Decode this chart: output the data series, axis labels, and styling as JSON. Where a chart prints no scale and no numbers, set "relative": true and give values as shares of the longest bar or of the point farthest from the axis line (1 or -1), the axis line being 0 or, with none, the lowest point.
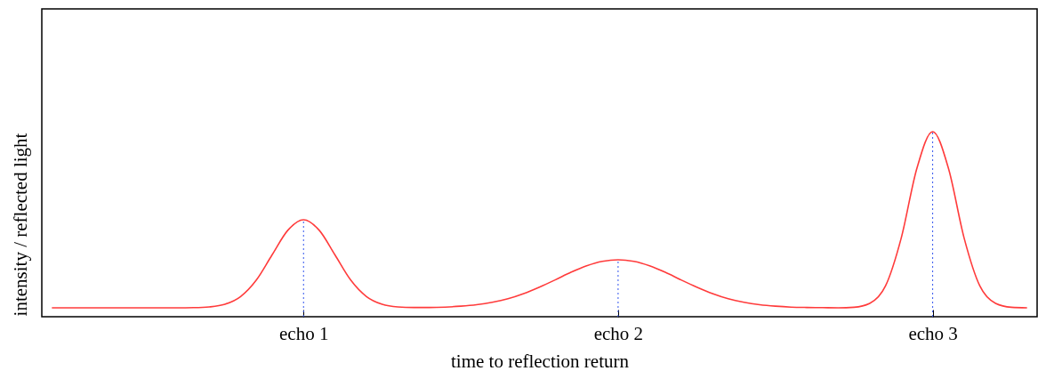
{
  "chart_data": {
    "type": "line",
    "relative": true,
    "xlabel": "time to reflection return",
    "ylabel": "intensity / reflected light",
    "categories": [
      null,
      null,
      null,
      null,
      null,
      null,
      null,
      null,
      null,
      null,
      null,
      null,
      null,
      null,
      null,
      null,
      "echo 1",
      null,
      null,
      null,
      null,
      null,
      null,
      null,
      null,
      null,
      null,
      null,
      null,
      null,
      null,
      null,
      null,
      null,
      null,
      null,
      "echo 2",
      null,
      null,
      null,
      null,
      null,
      null,
      null,
      null,
      null,
      null,
      null,
      null,
      null,
      null,
      null,
      null,
      null,
      null,
      null,
      "echo 3",
      null,
      null,
      null,
      null,
      null,
      null
    ],
    "series": [
      {
        "color": "#ff3b3b",
        "values": [
          0.048,
          0.048,
          0.048,
          0.048,
          0.048,
          0.048,
          0.048,
          0.048,
          0.048,
          0.049,
          0.053,
          0.067,
          0.109,
          0.198,
          0.334,
          0.467,
          0.524,
          0.467,
          0.334,
          0.198,
          0.109,
          0.067,
          0.053,
          0.05,
          0.05,
          0.052,
          0.057,
          0.065,
          0.078,
          0.097,
          0.125,
          0.16,
          0.199,
          0.24,
          0.275,
          0.299,
          0.308,
          0.299,
          0.275,
          0.24,
          0.199,
          0.16,
          0.125,
          0.097,
          0.078,
          0.065,
          0.057,
          0.052,
          0.05,
          0.049,
          0.048,
          0.051,
          0.072,
          0.166,
          0.425,
          0.803,
          1.0,
          0.803,
          0.425,
          0.166,
          0.072,
          0.051,
          0.048
        ]
      }
    ],
    "ref_lines": [
      {
        "axis": "x",
        "value": "echo 1",
        "color": "#3355ee",
        "line_style": "dotted"
      },
      {
        "axis": "x",
        "value": "echo 2",
        "color": "#3355ee",
        "line_style": "dotted"
      },
      {
        "axis": "x",
        "value": "echo 3",
        "color": "#3355ee",
        "line_style": "dotted"
      }
    ]
  }
}
